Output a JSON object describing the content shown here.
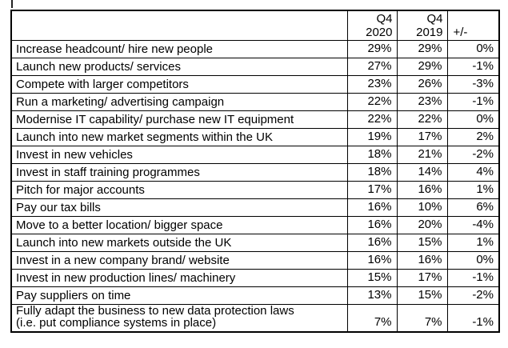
{
  "table": {
    "header": {
      "label": "",
      "q4_2020": "Q4\n2020",
      "q4_2019": "Q4\n2019",
      "change": "+/-"
    },
    "rows": [
      {
        "label": "Increase headcount/ hire new people",
        "q4_2020": "29%",
        "q4_2019": "29%",
        "change": "0%"
      },
      {
        "label": "Launch new products/ services",
        "q4_2020": "27%",
        "q4_2019": "29%",
        "change": "-1%"
      },
      {
        "label": "Compete with larger competitors",
        "q4_2020": "23%",
        "q4_2019": "26%",
        "change": "-3%"
      },
      {
        "label": "Run a marketing/ advertising campaign",
        "q4_2020": "22%",
        "q4_2019": "23%",
        "change": "-1%"
      },
      {
        "label": "Modernise IT capability/ purchase new IT equipment",
        "q4_2020": "22%",
        "q4_2019": "22%",
        "change": "0%"
      },
      {
        "label": "Launch into new market segments within the UK",
        "q4_2020": "19%",
        "q4_2019": "17%",
        "change": "2%"
      },
      {
        "label": "Invest in new vehicles",
        "q4_2020": "18%",
        "q4_2019": "21%",
        "change": "-2%"
      },
      {
        "label": "Invest in staff training programmes",
        "q4_2020": "18%",
        "q4_2019": "14%",
        "change": "4%"
      },
      {
        "label": "Pitch for major accounts",
        "q4_2020": "17%",
        "q4_2019": "16%",
        "change": "1%"
      },
      {
        "label": "Pay our tax bills",
        "q4_2020": "16%",
        "q4_2019": "10%",
        "change": "6%"
      },
      {
        "label": "Move to a better location/ bigger space",
        "q4_2020": "16%",
        "q4_2019": "20%",
        "change": "-4%"
      },
      {
        "label": "Launch into new markets outside the UK",
        "q4_2020": "16%",
        "q4_2019": "15%",
        "change": "1%"
      },
      {
        "label": "Invest in a new company brand/ website",
        "q4_2020": "16%",
        "q4_2019": "16%",
        "change": "0%"
      },
      {
        "label": "Invest in new production lines/ machinery",
        "q4_2020": "15%",
        "q4_2019": "17%",
        "change": "-1%"
      },
      {
        "label": "Pay suppliers on time",
        "q4_2020": "13%",
        "q4_2019": "15%",
        "change": "-2%"
      },
      {
        "label": "Fully adapt the business to new data protection laws\n(i.e. put compliance systems in place)",
        "q4_2020": "7%",
        "q4_2019": "7%",
        "change": "-1%"
      }
    ],
    "colors": {
      "border": "#000000",
      "text": "#000000",
      "background": "#ffffff"
    }
  },
  "chart_data": {
    "type": "table",
    "title": "",
    "categories": [
      "Increase headcount/ hire new people",
      "Launch new products/ services",
      "Compete with larger competitors",
      "Run a marketing/ advertising campaign",
      "Modernise IT capability/ purchase new IT equipment",
      "Launch into new market segments within the UK",
      "Invest in new vehicles",
      "Invest in staff training programmes",
      "Pitch for major accounts",
      "Pay our tax bills",
      "Move to a better location/ bigger space",
      "Launch into new markets outside the UK",
      "Invest in a new company brand/ website",
      "Invest in new production lines/ machinery",
      "Pay suppliers on time",
      "Fully adapt the business to new data protection laws (i.e. put compliance systems in place)"
    ],
    "series": [
      {
        "name": "Q4 2020",
        "unit": "%",
        "values": [
          29,
          27,
          23,
          22,
          22,
          19,
          18,
          18,
          17,
          16,
          16,
          16,
          16,
          15,
          13,
          7
        ]
      },
      {
        "name": "Q4 2019",
        "unit": "%",
        "values": [
          29,
          29,
          26,
          23,
          22,
          17,
          21,
          14,
          16,
          10,
          20,
          15,
          16,
          17,
          15,
          7
        ]
      },
      {
        "name": "+/-",
        "unit": "%",
        "values": [
          0,
          -1,
          -3,
          -1,
          0,
          2,
          -2,
          4,
          1,
          6,
          -4,
          1,
          0,
          -1,
          -2,
          -1
        ]
      }
    ]
  }
}
